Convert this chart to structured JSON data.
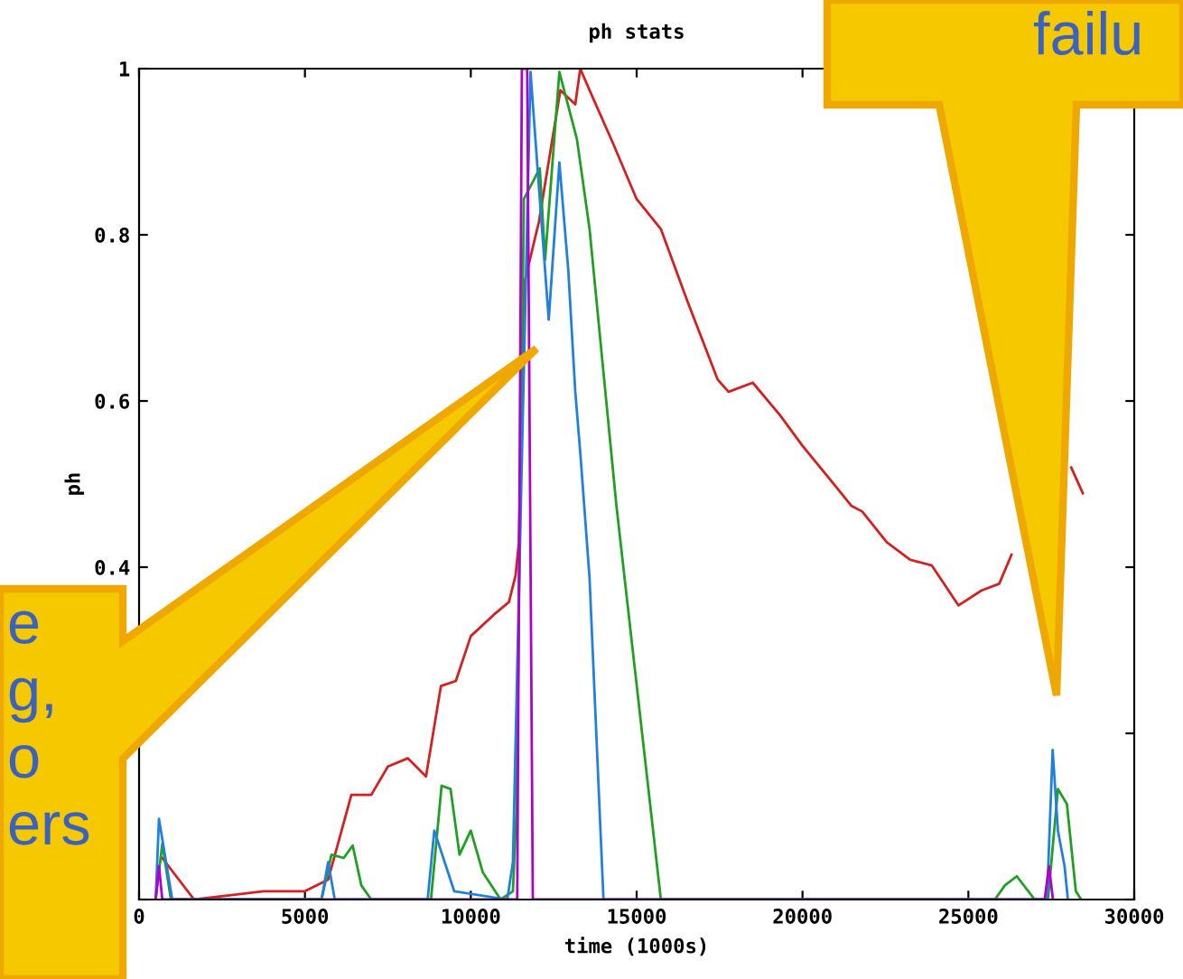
{
  "chart_data": {
    "type": "line",
    "title": "ph stats",
    "xlabel": "time (1000s)",
    "ylabel": "ph",
    "xlim": [
      0,
      30000
    ],
    "xticks": [
      0,
      5000,
      10000,
      15000,
      20000,
      25000,
      30000
    ],
    "ylim": [
      0,
      1
    ],
    "yticks": [
      {
        "value": 0,
        "label": null
      },
      {
        "value": 0.2,
        "label": null
      },
      0.4,
      0.6,
      0.8,
      1
    ],
    "grid": false,
    "legend": false,
    "marker": "none",
    "line_style": "solid",
    "series": [
      {
        "color": "#d42020",
        "x": [
          700,
          1660,
          3750,
          5000,
          5700,
          6400,
          7000,
          7500,
          8100,
          8650,
          9100,
          9550,
          10000,
          10700,
          11150,
          11350,
          11450,
          11600,
          12050,
          12700,
          13150,
          13300,
          13580,
          14300,
          15000,
          15730,
          16530,
          17440,
          17770,
          18500,
          19320,
          20000,
          20720,
          21470,
          21800,
          22540,
          23240,
          23900,
          24700,
          25400,
          25930,
          26300,
          27100,
          28100,
          28450
        ],
        "values": [
          0.05,
          0,
          0.01,
          0.01,
          0.024,
          0.126,
          0.126,
          0.16,
          0.17,
          0.148,
          0.257,
          0.263,
          0.317,
          0.343,
          0.358,
          0.39,
          0.43,
          0.74,
          0.815,
          0.974,
          0.957,
          1.0,
          0.974,
          0.909,
          0.843,
          0.807,
          0.72,
          0.626,
          0.611,
          0.622,
          0.583,
          0.546,
          0.511,
          0.474,
          0.467,
          0.43,
          0.409,
          0.402,
          0.354,
          0.372,
          0.38,
          0.415,
          null,
          0.52,
          0.489
        ]
      },
      {
        "color": "#20a020",
        "x": [
          500,
          700,
          960,
          5500,
          5800,
          6170,
          6440,
          6700,
          7000,
          8800,
          9120,
          9390,
          9660,
          10000,
          10360,
          10900,
          11270,
          11380,
          11600,
          12080,
          12240,
          12670,
          13200,
          13580,
          14390,
          15730,
          25800,
          26100,
          26460,
          27000,
          27400,
          27700,
          27970,
          28240,
          28400
        ],
        "values": [
          0,
          0.067,
          0,
          0,
          0.054,
          0.05,
          0.065,
          0.017,
          0,
          0,
          0.137,
          0.133,
          0.054,
          0.083,
          0.033,
          0,
          0.01,
          0.11,
          0.843,
          0.88,
          0.77,
          0.996,
          0.915,
          0.807,
          0.474,
          0,
          0,
          0.017,
          0.028,
          0,
          0,
          0.133,
          0.115,
          0.01,
          0
        ]
      },
      {
        "color": "#2080e0",
        "x": [
          500,
          600,
          1000,
          5500,
          5700,
          5900,
          8700,
          8900,
          9500,
          11100,
          11270,
          11800,
          12080,
          12350,
          12670,
          12940,
          13150,
          13310,
          13580,
          14000,
          27370,
          27540,
          27700,
          27900,
          28000
        ],
        "values": [
          0,
          0.097,
          0,
          0,
          0.045,
          0,
          0,
          0.083,
          0.01,
          0,
          0.045,
          0.996,
          0.843,
          0.698,
          0.887,
          0.757,
          0.611,
          0.533,
          0.387,
          0,
          0,
          0.18,
          0.083,
          0.04,
          0
        ]
      },
      {
        "color": "#b000d0",
        "x": [
          500,
          600,
          700,
          11400,
          11540,
          11700,
          11870,
          27300,
          27430,
          27550
        ],
        "values": [
          0,
          0.04,
          0,
          0,
          1.0,
          1.0,
          0,
          0,
          0.04,
          0
        ]
      }
    ],
    "annotations": [
      "e\ng,\no\ners",
      "failu"
    ]
  }
}
